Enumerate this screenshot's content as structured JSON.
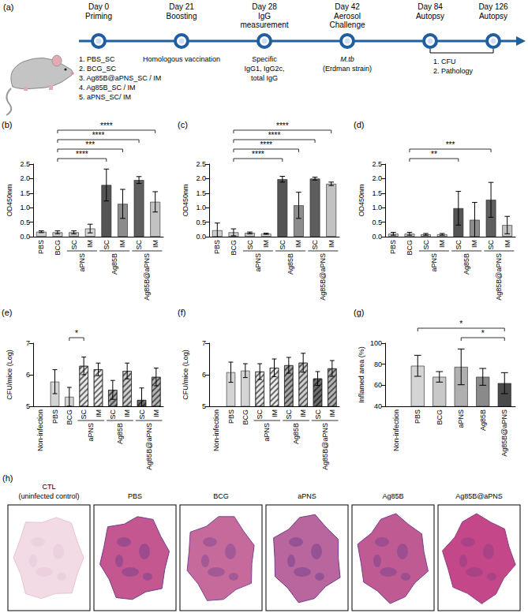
{
  "timeline": {
    "title": "(a)",
    "events": [
      {
        "day": "Day 0",
        "label": [
          "Priming"
        ],
        "below": [
          "1. PBS_SC",
          "2. BCG_SC",
          "3. Ag85B@aPNS_SC / IM",
          "4. Ag85B_SC / IM",
          "5. aPNS_SC/ IM"
        ]
      },
      {
        "day": "Day 21",
        "label": [
          "Boosting"
        ],
        "below": [
          "Homologous vaccination"
        ]
      },
      {
        "day": "Day 28",
        "label": [
          "IgG",
          "measurement"
        ],
        "below": [
          "Specific",
          "IgG1, IgG2c,",
          "total IgG"
        ]
      },
      {
        "day": "Day 42",
        "label": [
          "Aerosol",
          "Challenge"
        ],
        "below": [
          "M.tb",
          "(Erdman strain)"
        ]
      },
      {
        "day": "Day 84",
        "label": [
          "Autopsy"
        ]
      },
      {
        "day": "Day 126",
        "label": [
          "Autopsy"
        ]
      }
    ],
    "bracket": {
      "from": 4,
      "to": 5,
      "lines": [
        "1. CFU",
        "2. Pathology"
      ]
    }
  },
  "chart_data": [
    {
      "type": "bar",
      "title": "(b)",
      "y_label": "OD450nm",
      "categories": [
        "PBS",
        "BCG",
        "SC",
        "IM",
        "SC",
        "IM",
        "SC",
        "IM"
      ],
      "groups": [
        {
          "name": "aPNS",
          "from": 2,
          "to": 3
        },
        {
          "name": "Ag85B",
          "from": 4,
          "to": 5
        },
        {
          "name": "Ag85B@aPNS",
          "from": 6,
          "to": 7
        }
      ],
      "values": [
        0.17,
        0.15,
        0.15,
        0.28,
        1.78,
        1.13,
        1.95,
        1.2
      ],
      "errors": [
        0.03,
        0.05,
        0.05,
        0.15,
        0.55,
        0.5,
        0.12,
        0.35
      ],
      "colors": [
        "#cfcfcf",
        "#cfcfcf",
        "#c4c4c4",
        "#d6d6d6",
        "#545454",
        "#8c8c8c",
        "#5e5e5e",
        "#c2c2c2"
      ],
      "ylim": [
        0,
        2.5
      ],
      "yticks": [
        {
          "value": 0,
          "label": "0.0"
        },
        0.5,
        {
          "value": 1,
          "label": "1.0"
        },
        1.5,
        {
          "value": 2,
          "label": "2.0"
        },
        2.5
      ],
      "grid": false,
      "significance": [
        {
          "from": 1,
          "to": 4,
          "label": "****"
        },
        {
          "from": 1,
          "to": 5,
          "label": "***"
        },
        {
          "from": 1,
          "to": 6,
          "label": "****"
        },
        {
          "from": 1,
          "to": 7,
          "label": "****"
        }
      ]
    },
    {
      "type": "bar",
      "title": "(c)",
      "y_label": "OD450nm",
      "categories": [
        "PBS",
        "BCG",
        "SC",
        "IM",
        "SC",
        "IM",
        "SC",
        "IM"
      ],
      "groups": [
        {
          "name": "aPNS",
          "from": 2,
          "to": 3
        },
        {
          "name": "Ag85B",
          "from": 4,
          "to": 5
        },
        {
          "name": "Ag85B@aPNS",
          "from": 6,
          "to": 7
        }
      ],
      "values": [
        0.22,
        0.15,
        0.13,
        0.1,
        1.98,
        1.08,
        2.0,
        1.82
      ],
      "errors": [
        0.25,
        0.12,
        0.03,
        0.02,
        0.1,
        0.45,
        0.05,
        0.06
      ],
      "colors": [
        "#cfcfcf",
        "#cfcfcf",
        "#c4c4c4",
        "#d6d6d6",
        "#545454",
        "#8c8c8c",
        "#5e5e5e",
        "#c2c2c2"
      ],
      "ylim": [
        0,
        2.5
      ],
      "yticks": [
        {
          "value": 0,
          "label": "0.0"
        },
        0.5,
        {
          "value": 1,
          "label": "1.0"
        },
        1.5,
        {
          "value": 2,
          "label": "2.0"
        },
        2.5
      ],
      "grid": false,
      "significance": [
        {
          "from": 1,
          "to": 4,
          "label": "****"
        },
        {
          "from": 1,
          "to": 5,
          "label": "****"
        },
        {
          "from": 1,
          "to": 6,
          "label": "****"
        },
        {
          "from": 1,
          "to": 7,
          "label": "****"
        }
      ]
    },
    {
      "type": "bar",
      "title": "(d)",
      "y_label": "OD450nm",
      "categories": [
        "PBS",
        "BCG",
        "SC",
        "IM",
        "SC",
        "IM",
        "SC",
        "IM"
      ],
      "groups": [
        {
          "name": "aPNS",
          "from": 2,
          "to": 3
        },
        {
          "name": "Ag85B",
          "from": 4,
          "to": 5
        },
        {
          "name": "Ag85B@aPNS",
          "from": 6,
          "to": 7
        }
      ],
      "values": [
        0.1,
        0.1,
        0.08,
        0.08,
        0.98,
        0.58,
        1.27,
        0.4
      ],
      "errors": [
        0.05,
        0.05,
        0.03,
        0.03,
        0.58,
        0.6,
        0.6,
        0.3
      ],
      "colors": [
        "#cfcfcf",
        "#cfcfcf",
        "#c4c4c4",
        "#d6d6d6",
        "#545454",
        "#8c8c8c",
        "#5e5e5e",
        "#c2c2c2"
      ],
      "ylim": [
        0,
        2.5
      ],
      "yticks": [
        {
          "value": 0,
          "label": "0.0"
        },
        0.5,
        {
          "value": 1,
          "label": "1.0"
        },
        1.5,
        {
          "value": 2,
          "label": "2.0"
        },
        2.5
      ],
      "grid": false,
      "significance": [
        {
          "from": 1,
          "to": 4,
          "label": "**"
        },
        {
          "from": 1,
          "to": 6,
          "label": "***"
        }
      ]
    },
    {
      "type": "bar",
      "title": "(e)",
      "y_label": "CFU/mice (Log)",
      "categories": [
        "Non-infection",
        "PBS",
        "BCG",
        "SC",
        "IM",
        "SC",
        "IM",
        "SC",
        "IM"
      ],
      "groups": [
        {
          "name": "aPNS",
          "from": 3,
          "to": 4
        },
        {
          "name": "Ag85B",
          "from": 5,
          "to": 6
        },
        {
          "name": "Ag85B@aPNS",
          "from": 7,
          "to": 8
        }
      ],
      "values": [
        null,
        5.78,
        5.3,
        6.28,
        6.17,
        5.52,
        6.12,
        5.2,
        5.93
      ],
      "errors": [
        null,
        0.38,
        0.3,
        0.28,
        0.2,
        0.3,
        0.25,
        0.38,
        0.28
      ],
      "colors": [
        "#ffffff",
        "#d4d4d4",
        "#d4d4d4",
        "#e6e6e6",
        "#ececec",
        "#a8a8a8",
        "#d0d0d0",
        "#6e6e6e",
        "#b4b4b4"
      ],
      "ylim": [
        5,
        7
      ],
      "yticks": [
        5,
        6,
        7
      ],
      "grid": false,
      "significance": [
        {
          "from": 2,
          "to": 3,
          "label": "*"
        }
      ]
    },
    {
      "type": "bar",
      "title": "(f)",
      "y_label": "CFU/mice (Log)",
      "categories": [
        "Non-infection",
        "PBS",
        "BCG",
        "SC",
        "IM",
        "SC",
        "IM",
        "SC",
        "IM"
      ],
      "groups": [
        {
          "name": "aPNS",
          "from": 3,
          "to": 4
        },
        {
          "name": "Ag85B",
          "from": 5,
          "to": 6
        },
        {
          "name": "Ag85B@aPNS",
          "from": 7,
          "to": 8
        }
      ],
      "values": [
        null,
        6.08,
        6.13,
        6.1,
        6.22,
        6.3,
        6.38,
        5.88,
        6.2
      ],
      "errors": [
        null,
        0.32,
        0.22,
        0.25,
        0.28,
        0.25,
        0.3,
        0.22,
        0.25
      ],
      "colors": [
        "#ffffff",
        "#d4d4d4",
        "#d4d4d4",
        "#e6e6e6",
        "#ececec",
        "#a8a8a8",
        "#d0d0d0",
        "#6e6e6e",
        "#b4b4b4"
      ],
      "ylim": [
        5,
        7
      ],
      "yticks": [
        5,
        6,
        7
      ],
      "grid": false
    },
    {
      "type": "bar",
      "title": "(g)",
      "y_label": "Inflamed area (%)",
      "categories": [
        "Non-infection",
        "PBS",
        "BCG",
        "aPNS",
        "Ag85B",
        "Ag85B@aPNS"
      ],
      "values": [
        null,
        78.5,
        68,
        77.5,
        68,
        62
      ],
      "errors": [
        null,
        10,
        5,
        17,
        8,
        10
      ],
      "colors": [
        "#ffffff",
        "#d4d4d4",
        "#c8c8c8",
        "#b0b0b0",
        "#8a8a8a",
        "#4a4a4a"
      ],
      "ylim": [
        40,
        100
      ],
      "yticks": [
        40,
        60,
        80,
        100
      ],
      "grid": false,
      "significance": [
        {
          "from": 3,
          "to": 5,
          "label": "*"
        },
        {
          "from": 1,
          "to": 5,
          "label": "*"
        }
      ]
    }
  ],
  "histology": {
    "title": "(h)",
    "panels": [
      [
        "CTL",
        "(uninfected control)"
      ],
      [
        "PBS"
      ],
      [
        "BCG"
      ],
      [
        "aPNS"
      ],
      [
        "Ag85B"
      ],
      [
        "Ag85B@aPNS"
      ]
    ]
  }
}
